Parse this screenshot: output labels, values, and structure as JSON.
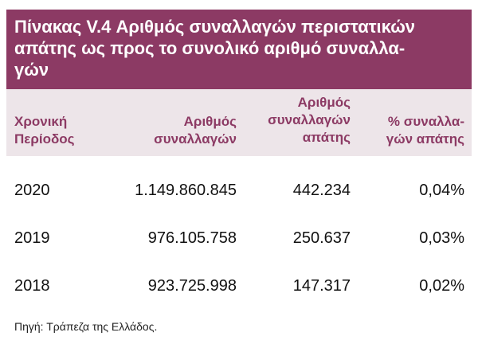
{
  "title_lines": [
    "Πίνακας V.4 Αριθμός συναλλαγών περιστατικών",
    "απάτης ως προς το συνολικό αριθμό συναλλα-",
    "γών"
  ],
  "table": {
    "header": [
      [
        "Χρονική",
        "Περίοδος"
      ],
      [
        "Αριθμός",
        "συναλλαγών"
      ],
      [
        "Αριθμός",
        "συναλλαγών",
        "απάτης"
      ],
      [
        "% συναλλα-",
        "γών απάτης"
      ]
    ],
    "rows": [
      [
        "2020",
        "1.149.860.845",
        "442.234",
        "0,04%"
      ],
      [
        "2019",
        "976.105.758",
        "250.637",
        "0,03%"
      ],
      [
        "2018",
        "923.725.998",
        "147.317",
        "0,02%"
      ]
    ]
  },
  "source": "Πηγή: Τράπεζα της Ελλάδος."
}
